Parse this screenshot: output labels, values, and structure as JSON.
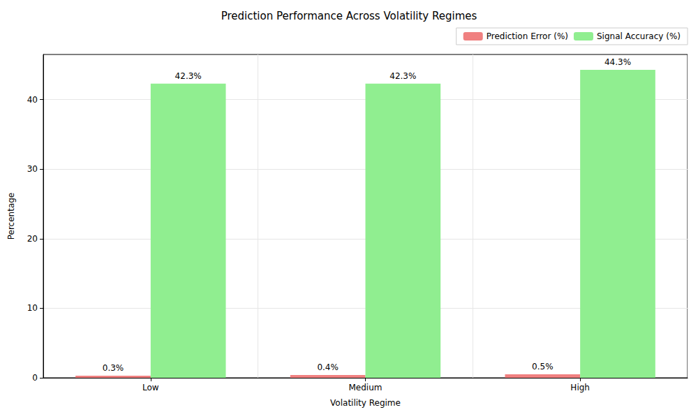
{
  "chart_data": {
    "type": "bar",
    "title": "Prediction Performance Across Volatility Regimes",
    "x_label": "Volatility Regime",
    "y_label": "Percentage",
    "categories": [
      "Low",
      "Medium",
      "High"
    ],
    "series": [
      {
        "name": "Prediction Error (%)",
        "color": "#f08080",
        "values": [
          0.3,
          0.4,
          0.5
        ],
        "value_labels": [
          "0.3%",
          "0.4%",
          "0.5%"
        ]
      },
      {
        "name": "Signal Accuracy (%)",
        "color": "#90ee90",
        "values": [
          42.3,
          42.3,
          44.3
        ],
        "value_labels": [
          "42.3%",
          "42.3%",
          "44.3%"
        ]
      }
    ],
    "ylim": [
      0,
      46.5
    ],
    "yticks": [
      0,
      10,
      20,
      30,
      40
    ],
    "grid": true,
    "legend": "upper right",
    "data_labels": true
  }
}
